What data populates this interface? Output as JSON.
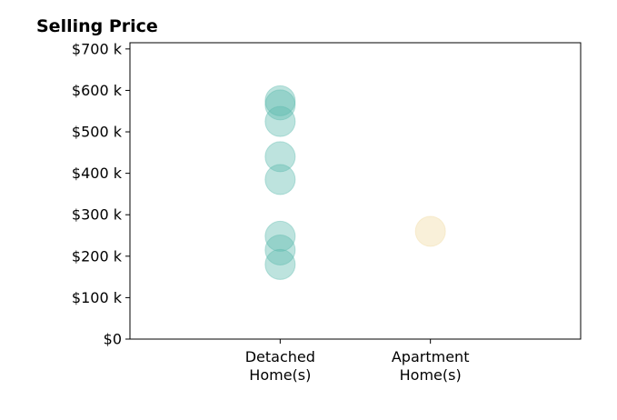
{
  "chart_data": {
    "type": "scatter",
    "title": "Selling Price",
    "xlabel": "",
    "ylabel": "",
    "categories": [
      "Detached\nHome(s)",
      "Apartment\nHome(s)"
    ],
    "y_ticks": [
      {
        "value": 0,
        "label": "$0"
      },
      {
        "value": 100000,
        "label": "$100 k"
      },
      {
        "value": 200000,
        "label": "$200 k"
      },
      {
        "value": 300000,
        "label": "$300 k"
      },
      {
        "value": 400000,
        "label": "$400 k"
      },
      {
        "value": 500000,
        "label": "$500 k"
      },
      {
        "value": 600000,
        "label": "$600 k"
      },
      {
        "value": 700000,
        "label": "$700 k"
      }
    ],
    "ylim": [
      0,
      715000
    ],
    "xlim": [
      -1,
      2
    ],
    "grid": false,
    "series": [
      {
        "category_index": 0,
        "color": "#5ab8ad",
        "values": [
          575000,
          565000,
          525000,
          440000,
          385000,
          248000,
          215000,
          180000
        ]
      },
      {
        "category_index": 1,
        "color": "#f0d9a0",
        "values": [
          260000
        ]
      }
    ]
  }
}
